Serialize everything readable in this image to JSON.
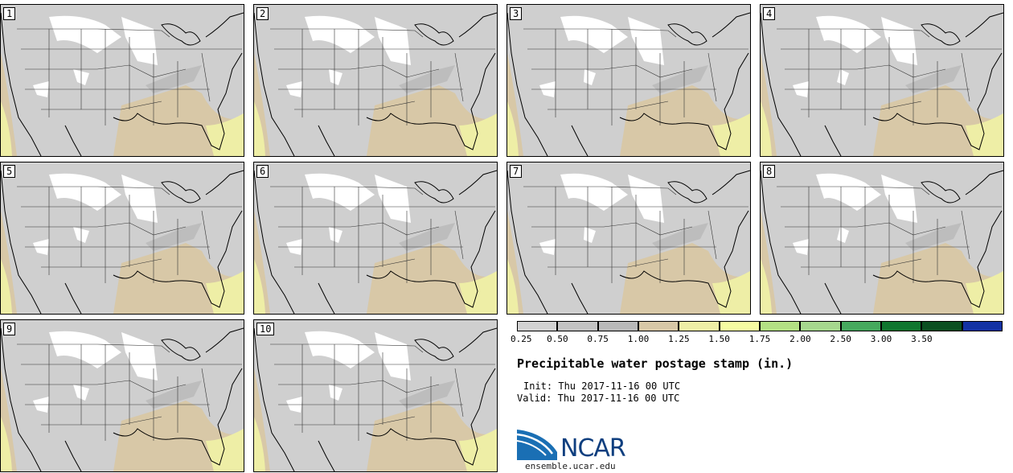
{
  "figure": {
    "title": "Precipitable water postage stamp (in.)",
    "init_label": "Init:",
    "init_value": "Thu 2017-11-16 00 UTC",
    "valid_label": "Valid:",
    "valid_value": "Thu 2017-11-16 00 UTC"
  },
  "panels": [
    {
      "label": "1"
    },
    {
      "label": "2"
    },
    {
      "label": "3"
    },
    {
      "label": "4"
    },
    {
      "label": "5"
    },
    {
      "label": "6"
    },
    {
      "label": "7"
    },
    {
      "label": "8"
    },
    {
      "label": "9"
    },
    {
      "label": "10"
    }
  ],
  "colorbar": {
    "ticks": [
      "0.25",
      "0.50",
      "0.75",
      "1.00",
      "1.25",
      "1.50",
      "1.75",
      "2.00",
      "2.50",
      "3.00",
      "3.50"
    ],
    "colors": [
      "#d2d2d2",
      "#c3c3c3",
      "#b9b9b9",
      "#d8c8a7",
      "#eeeea6",
      "#f6fba2",
      "#b3e084",
      "#a6d88e",
      "#46a95e",
      "#10762f",
      "#0b4f21",
      "#1232a4"
    ]
  },
  "logo": {
    "name": "NCAR",
    "url": "ensemble.ucar.edu"
  }
}
